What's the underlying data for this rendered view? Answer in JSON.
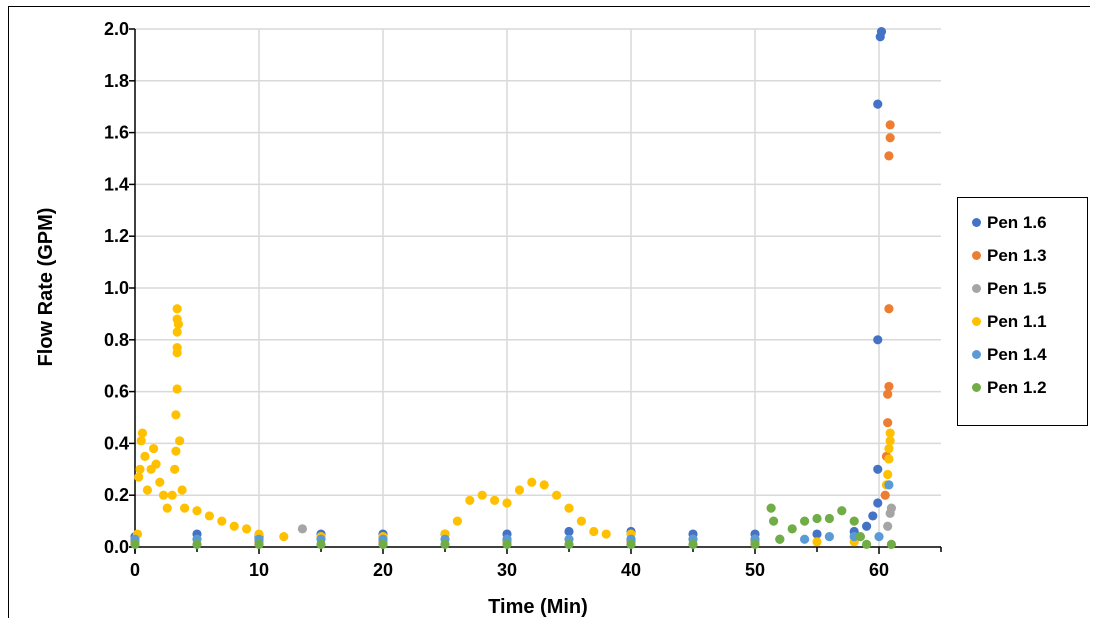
{
  "chart_data": {
    "type": "scatter",
    "title": "",
    "xlabel": "Time (Min)",
    "ylabel": "Flow Rate (GPM)",
    "xlim": [
      0,
      65
    ],
    "ylim": [
      0,
      2.0
    ],
    "x_ticks": [
      "0",
      "10",
      "20",
      "30",
      "40",
      "50",
      "60"
    ],
    "y_ticks": [
      "0.0",
      "0.2",
      "0.4",
      "0.6",
      "0.8",
      "1.0",
      "1.2",
      "1.4",
      "1.6",
      "1.8",
      "2.0"
    ],
    "grid": true,
    "legend_position": "right",
    "series": [
      {
        "name": "Pen 1.6",
        "color": "#4472C4",
        "points": [
          [
            0,
            0.04
          ],
          [
            5,
            0.05
          ],
          [
            10,
            0.04
          ],
          [
            15,
            0.05
          ],
          [
            20,
            0.05
          ],
          [
            25,
            0.05
          ],
          [
            30,
            0.05
          ],
          [
            35,
            0.06
          ],
          [
            40,
            0.06
          ],
          [
            45,
            0.05
          ],
          [
            50,
            0.05
          ],
          [
            55,
            0.05
          ],
          [
            58,
            0.06
          ],
          [
            59,
            0.08
          ],
          [
            59.5,
            0.12
          ],
          [
            59.9,
            0.17
          ],
          [
            59.9,
            0.3
          ],
          [
            59.9,
            0.8
          ],
          [
            59.9,
            1.71
          ],
          [
            60.1,
            1.97
          ],
          [
            60.2,
            1.99
          ]
        ]
      },
      {
        "name": "Pen 1.3",
        "color": "#ED7D31",
        "points": [
          [
            0,
            0.02
          ],
          [
            10,
            0.02
          ],
          [
            20,
            0.02
          ],
          [
            30,
            0.02
          ],
          [
            40,
            0.02
          ],
          [
            50,
            0.02
          ],
          [
            60.5,
            0.2
          ],
          [
            60.6,
            0.35
          ],
          [
            60.7,
            0.48
          ],
          [
            60.7,
            0.59
          ],
          [
            60.8,
            0.62
          ],
          [
            60.8,
            0.92
          ],
          [
            60.8,
            1.51
          ],
          [
            60.9,
            1.58
          ],
          [
            60.9,
            1.63
          ]
        ]
      },
      {
        "name": "Pen 1.5",
        "color": "#A5A5A5",
        "points": [
          [
            0,
            0.03
          ],
          [
            10,
            0.03
          ],
          [
            13.5,
            0.07
          ],
          [
            20,
            0.03
          ],
          [
            30,
            0.03
          ],
          [
            40,
            0.03
          ],
          [
            50,
            0.03
          ],
          [
            60.7,
            0.08
          ],
          [
            60.9,
            0.13
          ],
          [
            61.0,
            0.15
          ]
        ]
      },
      {
        "name": "Pen 1.1",
        "color": "#FFC000",
        "points": [
          [
            0.2,
            0.05
          ],
          [
            0.3,
            0.27
          ],
          [
            0.4,
            0.3
          ],
          [
            0.5,
            0.41
          ],
          [
            0.6,
            0.44
          ],
          [
            0.8,
            0.35
          ],
          [
            1.0,
            0.22
          ],
          [
            1.3,
            0.3
          ],
          [
            1.5,
            0.38
          ],
          [
            1.7,
            0.32
          ],
          [
            2.0,
            0.25
          ],
          [
            2.3,
            0.2
          ],
          [
            2.6,
            0.15
          ],
          [
            3.0,
            0.2
          ],
          [
            3.2,
            0.3
          ],
          [
            3.3,
            0.37
          ],
          [
            3.3,
            0.51
          ],
          [
            3.4,
            0.61
          ],
          [
            3.4,
            0.75
          ],
          [
            3.4,
            0.77
          ],
          [
            3.4,
            0.83
          ],
          [
            3.5,
            0.86
          ],
          [
            3.4,
            0.88
          ],
          [
            3.4,
            0.92
          ],
          [
            3.6,
            0.41
          ],
          [
            3.8,
            0.22
          ],
          [
            4,
            0.15
          ],
          [
            5,
            0.14
          ],
          [
            6,
            0.12
          ],
          [
            7,
            0.1
          ],
          [
            8,
            0.08
          ],
          [
            9,
            0.07
          ],
          [
            10,
            0.05
          ],
          [
            12,
            0.04
          ],
          [
            15,
            0.04
          ],
          [
            20,
            0.04
          ],
          [
            25,
            0.05
          ],
          [
            26,
            0.1
          ],
          [
            27,
            0.18
          ],
          [
            28,
            0.2
          ],
          [
            29,
            0.18
          ],
          [
            30,
            0.17
          ],
          [
            31,
            0.22
          ],
          [
            32,
            0.25
          ],
          [
            33,
            0.24
          ],
          [
            34,
            0.2
          ],
          [
            35,
            0.15
          ],
          [
            36,
            0.1
          ],
          [
            37,
            0.06
          ],
          [
            38,
            0.05
          ],
          [
            40,
            0.05
          ],
          [
            45,
            0.03
          ],
          [
            50,
            0.03
          ],
          [
            55,
            0.02
          ],
          [
            58,
            0.02
          ],
          [
            60.6,
            0.24
          ],
          [
            60.7,
            0.28
          ],
          [
            60.8,
            0.34
          ],
          [
            60.8,
            0.38
          ],
          [
            60.9,
            0.41
          ],
          [
            60.9,
            0.44
          ]
        ]
      },
      {
        "name": "Pen 1.4",
        "color": "#5B9BD5",
        "points": [
          [
            0,
            0.03
          ],
          [
            5,
            0.03
          ],
          [
            10,
            0.03
          ],
          [
            15,
            0.03
          ],
          [
            20,
            0.03
          ],
          [
            25,
            0.03
          ],
          [
            30,
            0.03
          ],
          [
            35,
            0.03
          ],
          [
            40,
            0.03
          ],
          [
            45,
            0.03
          ],
          [
            50,
            0.03
          ],
          [
            52,
            0.03
          ],
          [
            54,
            0.03
          ],
          [
            56,
            0.04
          ],
          [
            58,
            0.04
          ],
          [
            60,
            0.04
          ],
          [
            60.8,
            0.24
          ]
        ]
      },
      {
        "name": "Pen 1.2",
        "color": "#70AD47",
        "points": [
          [
            0,
            0.01
          ],
          [
            5,
            0.01
          ],
          [
            10,
            0.01
          ],
          [
            15,
            0.01
          ],
          [
            20,
            0.01
          ],
          [
            25,
            0.01
          ],
          [
            30,
            0.01
          ],
          [
            35,
            0.01
          ],
          [
            40,
            0.01
          ],
          [
            45,
            0.01
          ],
          [
            50,
            0.01
          ],
          [
            51.3,
            0.15
          ],
          [
            51.5,
            0.1
          ],
          [
            52,
            0.03
          ],
          [
            53,
            0.07
          ],
          [
            54,
            0.1
          ],
          [
            55,
            0.11
          ],
          [
            56,
            0.11
          ],
          [
            57,
            0.14
          ],
          [
            58,
            0.1
          ],
          [
            58.5,
            0.04
          ],
          [
            59,
            0.01
          ],
          [
            61,
            0.01
          ]
        ]
      }
    ]
  }
}
